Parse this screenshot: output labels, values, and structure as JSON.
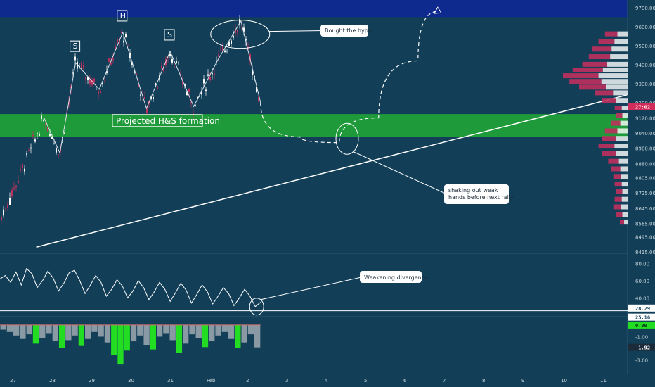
{
  "colors": {
    "background": "#123f57",
    "resistance_zone": "#0e2a8f",
    "support_zone": "#1f9a3a",
    "bull_candle": "#ffffff",
    "bear_candle": "#c0305e",
    "trend_line": "#ffffff",
    "price_tag": "#d02d5b",
    "hist_green": "#22dd22",
    "hist_gray": "#8a9aa5",
    "axis_text": "#c9d6de",
    "separator": "#2a5870"
  },
  "chart_data": [
    {
      "type": "candlestick",
      "panel": "price",
      "x_labels": [
        "27",
        "28",
        "29",
        "30",
        "31",
        "Feb",
        "2",
        "3",
        "4",
        "5",
        "6",
        "7",
        "8",
        "9",
        "10",
        "11"
      ],
      "y_ticks": [
        "9700.00",
        "9600.00",
        "9500.00",
        "9400.00",
        "9300.00",
        "9200.00",
        "9120.00",
        "9040.00",
        "8960.00",
        "8880.00",
        "8805.00",
        "8725.00",
        "8645.00",
        "8565.00",
        "8495.00",
        "8415.00"
      ],
      "ylim": [
        8415,
        9740
      ],
      "current_price_tag": "27:02",
      "zones": [
        {
          "name": "resistance",
          "from": 9650,
          "to": 9740,
          "color": "#0e2a8f"
        },
        {
          "name": "support",
          "from": 9020,
          "to": 9140,
          "color": "#1f9a3a"
        }
      ],
      "pattern_labels": [
        "S",
        "H",
        "S"
      ],
      "pattern_points": [
        [
          27.8,
          9120
        ],
        [
          28.2,
          8935
        ],
        [
          28.6,
          9410
        ],
        [
          29.2,
          9270
        ],
        [
          29.8,
          9570
        ],
        [
          30.4,
          9170
        ],
        [
          31.0,
          9470
        ],
        [
          31.6,
          9180
        ],
        [
          32.2,
          9420
        ],
        [
          32.8,
          9630
        ],
        [
          33.3,
          9200
        ]
      ],
      "trend_line": {
        "from": [
          27.6,
          8440
        ],
        "to": [
          42.6,
          9240
        ]
      },
      "projection_path": [
        [
          33.3,
          9200
        ],
        [
          34.3,
          9020
        ],
        [
          35.3,
          8990
        ],
        [
          36.3,
          9120
        ],
        [
          37.3,
          9420
        ],
        [
          37.8,
          9680
        ]
      ],
      "projection_label": "Projected H&S formation",
      "annotations": [
        {
          "text": "Bought the hype"
        },
        {
          "text": "shaking out weak hands before next rally"
        }
      ],
      "volume_profile": [
        {
          "price": 9560,
          "value": 0.35
        },
        {
          "price": 9520,
          "value": 0.45
        },
        {
          "price": 9480,
          "value": 0.55
        },
        {
          "price": 9440,
          "value": 0.6
        },
        {
          "price": 9400,
          "value": 0.7
        },
        {
          "price": 9370,
          "value": 0.85
        },
        {
          "price": 9340,
          "value": 1.0
        },
        {
          "price": 9310,
          "value": 0.9
        },
        {
          "price": 9280,
          "value": 0.75
        },
        {
          "price": 9250,
          "value": 0.5
        },
        {
          "price": 9210,
          "value": 0.4
        },
        {
          "price": 9170,
          "value": 0.2
        },
        {
          "price": 9130,
          "value": 0.18
        },
        {
          "price": 9090,
          "value": 0.25
        },
        {
          "price": 9050,
          "value": 0.35
        },
        {
          "price": 9010,
          "value": 0.4
        },
        {
          "price": 8970,
          "value": 0.45
        },
        {
          "price": 8930,
          "value": 0.4
        },
        {
          "price": 8890,
          "value": 0.3
        },
        {
          "price": 8850,
          "value": 0.25
        },
        {
          "price": 8810,
          "value": 0.22
        },
        {
          "price": 8770,
          "value": 0.2
        },
        {
          "price": 8730,
          "value": 0.18
        },
        {
          "price": 8690,
          "value": 0.2
        },
        {
          "price": 8650,
          "value": 0.22
        },
        {
          "price": 8610,
          "value": 0.18
        },
        {
          "price": 8570,
          "value": 0.12
        }
      ]
    },
    {
      "type": "line",
      "panel": "oscillator",
      "y_ticks": [
        "80.00",
        "60.00",
        "40.00"
      ],
      "ylim": [
        20,
        90
      ],
      "horizontal_line": 25.16,
      "tags": [
        "28.29",
        "25.16"
      ],
      "label": "Weakening divergence",
      "values": [
        62,
        66,
        58,
        70,
        55,
        74,
        68,
        52,
        60,
        71,
        63,
        48,
        57,
        69,
        72,
        60,
        45,
        55,
        66,
        58,
        42,
        50,
        61,
        54,
        40,
        48,
        60,
        52,
        38,
        47,
        58,
        50,
        36,
        46,
        57,
        49,
        34,
        44,
        55,
        47,
        33,
        42,
        52,
        45,
        31,
        40,
        50,
        42,
        30,
        35
      ]
    },
    {
      "type": "bar",
      "panel": "histogram",
      "y_ticks": [
        "0.00",
        "-1.00",
        "-2.00",
        "-3.00"
      ],
      "ylim": [
        -4.0,
        0.6
      ],
      "tags": [
        "0.00",
        "-1.92"
      ],
      "values": [
        -0.4,
        -0.6,
        -0.9,
        -1.2,
        -0.8,
        -1.6,
        -1.1,
        -0.7,
        -1.4,
        -2.0,
        -1.3,
        -0.9,
        -1.8,
        -1.2,
        -0.6,
        -1.0,
        -1.5,
        -2.6,
        -3.4,
        -2.2,
        -1.4,
        -0.9,
        -1.7,
        -2.1,
        -1.0,
        -0.7,
        -1.3,
        -2.4,
        -1.6,
        -0.8,
        -1.1,
        -1.9,
        -1.4,
        -0.9,
        -0.6,
        -1.2,
        -2.0,
        -1.5,
        -0.8,
        -1.92
      ],
      "green_indices": [
        5,
        9,
        12,
        17,
        18,
        19,
        23,
        27,
        31,
        36
      ]
    }
  ]
}
